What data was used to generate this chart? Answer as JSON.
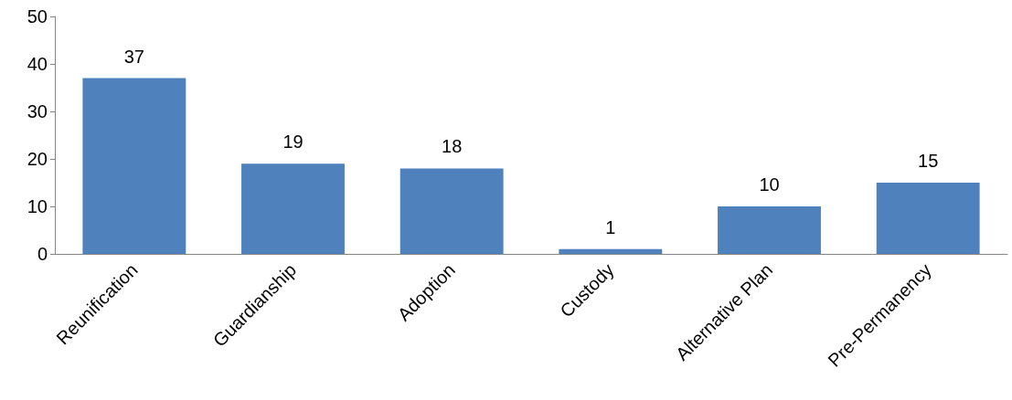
{
  "chart_data": {
    "type": "bar",
    "categories": [
      "Reunification",
      "Guardianship",
      "Adoption",
      "Custody",
      "Alternative Plan",
      "Pre-Permanency"
    ],
    "values": [
      37,
      19,
      18,
      1,
      10,
      15
    ],
    "color": "#4f81bd",
    "ylim": [
      0,
      50
    ],
    "yticks": [
      0,
      10,
      20,
      30,
      40,
      50
    ],
    "grid": false,
    "data_labels": true
  }
}
